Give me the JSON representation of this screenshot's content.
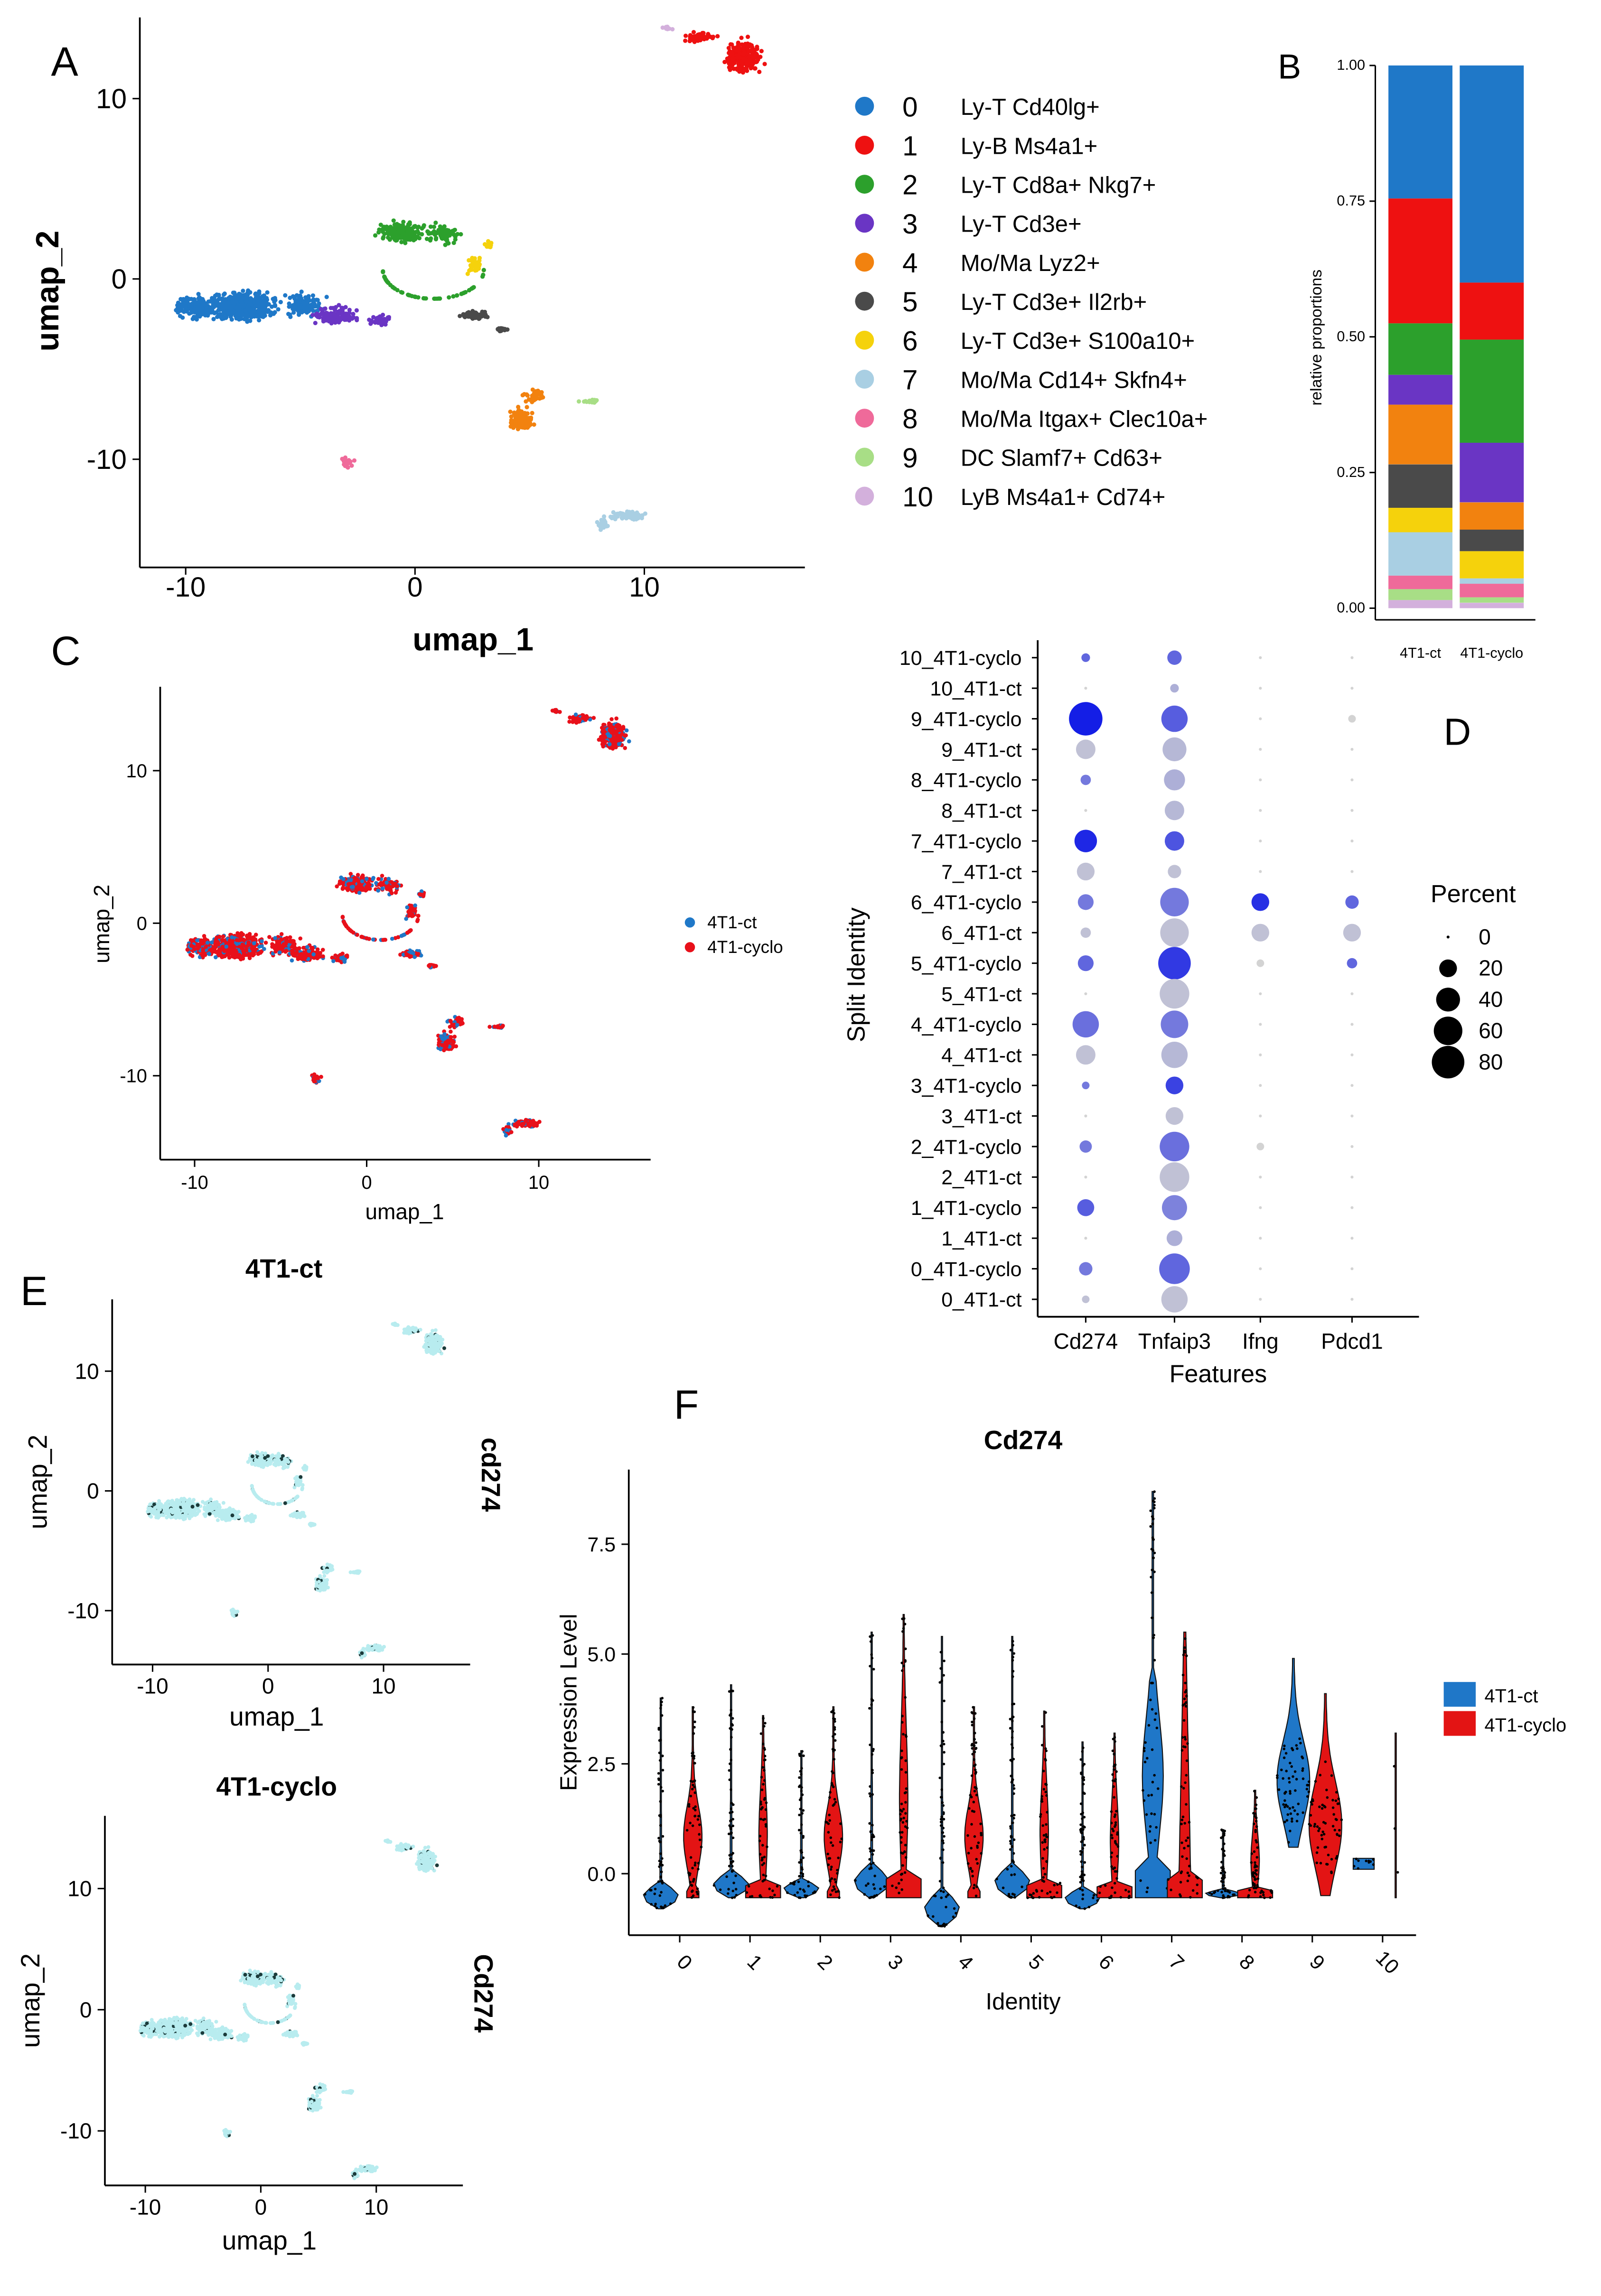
{
  "panels": {
    "A": "A",
    "B": "B",
    "C": "C",
    "D": "D",
    "E": "E",
    "F": "F"
  },
  "colors": {
    "c0": "#1f78c8",
    "c1": "#ee1111",
    "c2": "#2ca02c",
    "c3": "#6a35c4",
    "c4": "#f2820f",
    "c5": "#4a4a4a",
    "c6": "#f5d20c",
    "c7": "#a9cfe3",
    "c8": "#ef6a9a",
    "c9": "#a8de86",
    "c10": "#d3b0dc",
    "ct": "#1f78c8",
    "cyclo": "#e8101a",
    "violet_ct": "#1f77c8",
    "violet_cyclo": "#e31414"
  },
  "chart_data": [
    {
      "id": "A",
      "type": "scatter",
      "title": "",
      "xlabel": "umap_1",
      "ylabel": "umap_2",
      "xticks": [
        -10,
        0,
        10
      ],
      "yticks": [
        10,
        0,
        -10
      ],
      "xlim": [
        -12,
        17
      ],
      "ylim": [
        -16,
        14.5
      ],
      "legend": [
        {
          "code": "0",
          "label": "Ly-T Cd40lg+"
        },
        {
          "code": "1",
          "label": "Ly-B Ms4a1+"
        },
        {
          "code": "2",
          "label": "Ly-T Cd8a+ Nkg7+"
        },
        {
          "code": "3",
          "label": "Ly-T Cd3e+"
        },
        {
          "code": "4",
          "label": "Mo/Ma Lyz2+"
        },
        {
          "code": "5",
          "label": "Ly-T Cd3e+ Il2rb+"
        },
        {
          "code": "6",
          "label": "Ly-T Cd3e+ S100a10+"
        },
        {
          "code": "7",
          "label": "Mo/Ma Cd14+ Skfn4+"
        },
        {
          "code": "8",
          "label": "Mo/Ma Itgax+ Clec10a+"
        },
        {
          "code": "9",
          "label": "DC Slamf7+ Cd63+"
        },
        {
          "code": "10",
          "label": "LyB Ms4a1+ Cd74+"
        }
      ]
    },
    {
      "id": "B",
      "type": "bar",
      "stacked": true,
      "ylabel": "relative proportions",
      "categories": [
        "4T1-ct",
        "4T1-cyclo"
      ],
      "yticks": [
        "1.00",
        "0.75",
        "0.50",
        "0.25",
        "0.00"
      ],
      "ylim": [
        0,
        1
      ],
      "series": [
        {
          "name": "10",
          "values": [
            0.015,
            0.01
          ]
        },
        {
          "name": "9",
          "values": [
            0.02,
            0.01
          ]
        },
        {
          "name": "8",
          "values": [
            0.025,
            0.025
          ]
        },
        {
          "name": "7",
          "values": [
            0.08,
            0.01
          ]
        },
        {
          "name": "6",
          "values": [
            0.045,
            0.05
          ]
        },
        {
          "name": "5",
          "values": [
            0.08,
            0.04
          ]
        },
        {
          "name": "4",
          "values": [
            0.11,
            0.05
          ]
        },
        {
          "name": "3",
          "values": [
            0.055,
            0.11
          ]
        },
        {
          "name": "2",
          "values": [
            0.095,
            0.19
          ]
        },
        {
          "name": "1",
          "values": [
            0.23,
            0.105
          ]
        },
        {
          "name": "0",
          "values": [
            0.245,
            0.4
          ]
        }
      ]
    },
    {
      "id": "C",
      "type": "scatter",
      "xlabel": "umap_1",
      "ylabel": "umap_2",
      "xticks": [
        -10,
        0,
        10
      ],
      "yticks": [
        10,
        0,
        -10
      ],
      "xlim": [
        -12,
        16.5
      ],
      "ylim": [
        -15.5,
        15.5
      ],
      "legend": [
        {
          "name": "4T1-ct"
        },
        {
          "name": "4T1-cyclo"
        }
      ]
    },
    {
      "id": "D",
      "type": "scatter",
      "subtype": "dotplot",
      "xlabel": "Features",
      "ylabel": "Split Identity",
      "features": [
        "Cd274",
        "Tnfaip3",
        "Ifng",
        "Pdcd1"
      ],
      "rows": [
        "10_4T1-cyclo",
        "10_4T1-ct",
        "9_4T1-cyclo",
        "9_4T1-ct",
        "8_4T1-cyclo",
        "8_4T1-ct",
        "7_4T1-cyclo",
        "7_4T1-ct",
        "6_4T1-cyclo",
        "6_4T1-ct",
        "5_4T1-cyclo",
        "5_4T1-ct",
        "4_4T1-cyclo",
        "4_4T1-ct",
        "3_4T1-cyclo",
        "3_4T1-ct",
        "2_4T1-cyclo",
        "2_4T1-ct",
        "1_4T1-cyclo",
        "1_4T1-ct",
        "0_4T1-cyclo",
        "0_4T1-ct"
      ],
      "percent": [
        [
          3,
          12,
          1,
          1
        ],
        [
          1,
          3,
          1,
          1
        ],
        [
          85,
          50,
          1,
          2
        ],
        [
          25,
          40,
          1,
          1
        ],
        [
          5,
          30,
          1,
          1
        ],
        [
          1,
          25,
          1,
          1
        ],
        [
          35,
          25,
          1,
          1
        ],
        [
          20,
          10,
          1,
          1
        ],
        [
          15,
          60,
          20,
          10
        ],
        [
          5,
          60,
          20,
          20
        ],
        [
          15,
          80,
          2,
          5
        ],
        [
          1,
          65,
          1,
          1
        ],
        [
          50,
          55,
          1,
          1
        ],
        [
          25,
          50,
          1,
          1
        ],
        [
          2,
          20,
          1,
          1
        ],
        [
          1,
          20,
          1,
          1
        ],
        [
          8,
          65,
          2,
          1
        ],
        [
          1,
          65,
          1,
          1
        ],
        [
          18,
          45,
          1,
          1
        ],
        [
          1,
          15,
          1,
          1
        ],
        [
          10,
          70,
          1,
          1
        ],
        [
          2,
          50,
          1,
          1
        ]
      ],
      "avg_expr": [
        [
          0.6,
          0.6,
          0,
          0
        ],
        [
          0,
          0.2,
          0,
          0
        ],
        [
          1.0,
          0.65,
          0,
          0
        ],
        [
          0.1,
          0.15,
          0,
          0
        ],
        [
          0.5,
          0.2,
          0,
          0
        ],
        [
          0,
          0.15,
          0,
          0
        ],
        [
          0.95,
          0.7,
          0,
          0
        ],
        [
          0.1,
          0.1,
          0,
          0
        ],
        [
          0.5,
          0.5,
          0.9,
          0.6
        ],
        [
          0.1,
          0.1,
          0.1,
          0.1
        ],
        [
          0.6,
          0.85,
          0,
          0.6
        ],
        [
          0,
          0.1,
          0,
          0
        ],
        [
          0.55,
          0.5,
          0,
          0
        ],
        [
          0.1,
          0.15,
          0,
          0
        ],
        [
          0.5,
          0.8,
          0,
          0
        ],
        [
          0,
          0.1,
          0,
          0
        ],
        [
          0.5,
          0.55,
          0,
          0
        ],
        [
          0,
          0.1,
          0,
          0
        ],
        [
          0.65,
          0.45,
          0,
          0
        ],
        [
          0,
          0.2,
          0,
          0
        ],
        [
          0.5,
          0.6,
          0,
          0
        ],
        [
          0.1,
          0.1,
          0,
          0
        ]
      ],
      "legend_title": "Percent",
      "legend_values": [
        0,
        20,
        40,
        60,
        80
      ]
    },
    {
      "id": "E",
      "type": "scatter",
      "subtype": "featureplot",
      "feature_labels": [
        "cd274",
        "Cd274"
      ],
      "subplots": [
        {
          "title": "4T1-ct"
        },
        {
          "title": "4T1-cyclo"
        }
      ],
      "xlabel": "umap_1",
      "ylabel": "umap_2",
      "xticks": [
        -10,
        0,
        10
      ],
      "yticks": [
        10,
        0,
        -10
      ]
    },
    {
      "id": "F",
      "type": "violin",
      "title": "Cd274",
      "xlabel": "Identity",
      "ylabel": "Expression Level",
      "categories": [
        "0",
        "1",
        "2",
        "3",
        "4",
        "5",
        "6",
        "7",
        "8",
        "9",
        "10"
      ],
      "yticks": [
        "0.0",
        "2.5",
        "5.0",
        "7.5"
      ],
      "ylim": [
        -1.4,
        9.2
      ],
      "series": [
        {
          "name": "4T1-ct"
        },
        {
          "name": "4T1-cyclo"
        }
      ],
      "violins": [
        {
          "g": "0",
          "s": "ct",
          "max": 4.0,
          "min": -0.8,
          "k": "low"
        },
        {
          "g": "0",
          "s": "cyclo",
          "max": 3.8,
          "min": -0.55,
          "k": "wide"
        },
        {
          "g": "1",
          "s": "ct",
          "max": 4.3,
          "min": -0.55,
          "k": "low"
        },
        {
          "g": "1",
          "s": "cyclo",
          "max": 3.6,
          "min": -0.55,
          "k": "flat"
        },
        {
          "g": "2",
          "s": "ct",
          "max": 2.8,
          "min": -0.55,
          "k": "low"
        },
        {
          "g": "2",
          "s": "cyclo",
          "max": 3.8,
          "min": -0.55,
          "k": "wide"
        },
        {
          "g": "3",
          "s": "ct",
          "max": 5.5,
          "min": -0.55,
          "k": "low"
        },
        {
          "g": "3",
          "s": "cyclo",
          "max": 5.9,
          "min": -0.55,
          "k": "flat"
        },
        {
          "g": "4",
          "s": "ct",
          "max": 5.4,
          "min": -1.2,
          "k": "low"
        },
        {
          "g": "4",
          "s": "cyclo",
          "max": 3.8,
          "min": -0.55,
          "k": "wide"
        },
        {
          "g": "5",
          "s": "ct",
          "max": 5.4,
          "min": -0.55,
          "k": "low"
        },
        {
          "g": "5",
          "s": "cyclo",
          "max": 3.7,
          "min": -0.55,
          "k": "flat"
        },
        {
          "g": "6",
          "s": "ct",
          "max": 3.0,
          "min": -0.8,
          "k": "low"
        },
        {
          "g": "6",
          "s": "cyclo",
          "max": 3.2,
          "min": -0.55,
          "k": "flat"
        },
        {
          "g": "7",
          "s": "ct",
          "max": 8.7,
          "min": -0.55,
          "k": "tallct"
        },
        {
          "g": "7",
          "s": "cyclo",
          "max": 5.5,
          "min": -0.55,
          "k": "tallcy"
        },
        {
          "g": "8",
          "s": "ct",
          "max": 1.0,
          "min": -0.55,
          "k": "low"
        },
        {
          "g": "8",
          "s": "cyclo",
          "max": 1.9,
          "min": -0.55,
          "k": "flat"
        },
        {
          "g": "9",
          "s": "ct",
          "max": 4.9,
          "min": 0.6,
          "k": "mid"
        },
        {
          "g": "9",
          "s": "cyclo",
          "max": 4.1,
          "min": -0.5,
          "k": "mid"
        },
        {
          "g": "10",
          "s": "ct",
          "max": 0.35,
          "min": 0.1,
          "k": "tiny"
        },
        {
          "g": "10",
          "s": "cyclo",
          "max": 3.2,
          "min": -0.55,
          "k": "line"
        }
      ]
    }
  ]
}
